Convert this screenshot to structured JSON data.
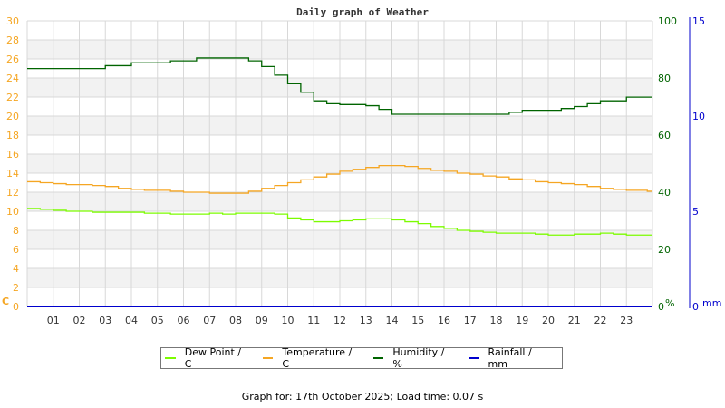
{
  "chart_data": {
    "type": "line",
    "title": "Daily graph of Weather",
    "x": [
      0,
      0.5,
      1,
      1.5,
      2,
      2.5,
      3,
      3.5,
      4,
      4.5,
      5,
      5.5,
      6,
      6.5,
      7,
      7.5,
      8,
      8.5,
      9,
      9.5,
      10,
      10.5,
      11,
      11.5,
      12,
      12.5,
      13,
      13.5,
      14,
      14.5,
      15,
      15.5,
      16,
      16.5,
      17,
      17.5,
      18,
      18.5,
      19,
      19.5,
      20,
      20.5,
      21,
      21.5,
      22,
      22.5,
      23,
      23.8
    ],
    "x_tick_labels": [
      "01",
      "02",
      "03",
      "04",
      "05",
      "06",
      "07",
      "08",
      "09",
      "10",
      "11",
      "12",
      "13",
      "14",
      "15",
      "16",
      "17",
      "18",
      "19",
      "20",
      "21",
      "22",
      "23"
    ],
    "xlim": [
      0,
      24
    ],
    "series": [
      {
        "name": "Dew Point / C",
        "axis": "left",
        "color": "#7cfc00",
        "values": [
          10.3,
          10.2,
          10.1,
          10.0,
          10.0,
          9.9,
          9.9,
          9.9,
          9.9,
          9.8,
          9.8,
          9.7,
          9.7,
          9.7,
          9.8,
          9.7,
          9.8,
          9.8,
          9.8,
          9.7,
          9.3,
          9.1,
          8.9,
          8.9,
          9.0,
          9.1,
          9.2,
          9.2,
          9.1,
          8.9,
          8.7,
          8.4,
          8.2,
          8.0,
          7.9,
          7.8,
          7.7,
          7.7,
          7.7,
          7.6,
          7.5,
          7.5,
          7.6,
          7.6,
          7.7,
          7.6,
          7.5,
          7.5
        ]
      },
      {
        "name": "Temperature / C",
        "axis": "left",
        "color": "#f5a623",
        "values": [
          13.1,
          13.0,
          12.9,
          12.8,
          12.8,
          12.7,
          12.6,
          12.4,
          12.3,
          12.2,
          12.2,
          12.1,
          12.0,
          12.0,
          11.9,
          11.9,
          11.9,
          12.1,
          12.4,
          12.7,
          13.0,
          13.3,
          13.6,
          13.9,
          14.2,
          14.4,
          14.6,
          14.8,
          14.8,
          14.7,
          14.5,
          14.3,
          14.2,
          14.0,
          13.9,
          13.7,
          13.6,
          13.4,
          13.3,
          13.1,
          13.0,
          12.9,
          12.8,
          12.6,
          12.4,
          12.3,
          12.2,
          12.1
        ]
      },
      {
        "name": "Humidity / %",
        "axis": "right",
        "color": "#006400",
        "values": [
          83.3,
          83.3,
          83.3,
          83.3,
          83.3,
          83.3,
          84.3,
          84.3,
          85.3,
          85.3,
          85.3,
          86.0,
          86.0,
          87.0,
          87.0,
          87.0,
          87.0,
          86.0,
          84.0,
          81.0,
          78.0,
          75.0,
          72.0,
          71.0,
          70.7,
          70.7,
          70.3,
          69.0,
          67.3,
          67.3,
          67.3,
          67.3,
          67.3,
          67.3,
          67.3,
          67.3,
          67.3,
          68.0,
          68.7,
          68.7,
          68.7,
          69.3,
          70.0,
          71.0,
          72.0,
          72.0,
          73.3,
          73.3
        ]
      },
      {
        "name": "Rainfall / mm",
        "axis": "rain",
        "color": "#0000cd",
        "values": [
          0,
          0,
          0,
          0,
          0,
          0,
          0,
          0,
          0,
          0,
          0,
          0,
          0,
          0,
          0,
          0,
          0,
          0,
          0,
          0,
          0,
          0,
          0,
          0,
          0,
          0,
          0,
          0,
          0,
          0,
          0,
          0,
          0,
          0,
          0,
          0,
          0,
          0,
          0,
          0,
          0,
          0,
          0,
          0,
          0,
          0,
          0,
          0
        ]
      }
    ],
    "axes": {
      "left": {
        "label": "C",
        "ylim": [
          0,
          30
        ],
        "ticks": [
          "0",
          "2",
          "4",
          "6",
          "8",
          "10",
          "12",
          "14",
          "16",
          "18",
          "20",
          "22",
          "24",
          "26",
          "28",
          "30"
        ],
        "color": "#f5a623"
      },
      "right": {
        "label": "%",
        "ylim": [
          0,
          100
        ],
        "ticks": [
          "0",
          "20",
          "40",
          "60",
          "80",
          "100"
        ],
        "color": "#006400"
      },
      "rain": {
        "label": "mm",
        "ylim": [
          0,
          15
        ],
        "ticks": [
          "0",
          "5",
          "10",
          "15"
        ],
        "color": "#0000cd"
      }
    },
    "grid": true,
    "legend_position": "bottom"
  },
  "legend": [
    {
      "label": "Dew Point / C",
      "color": "#7cfc00"
    },
    {
      "label": "Temperature / C",
      "color": "#f5a623"
    },
    {
      "label": "Humidity / %",
      "color": "#006400"
    },
    {
      "label": "Rainfall / mm",
      "color": "#0000cd"
    }
  ],
  "footer": {
    "text": "Graph for: 17th October 2025; Load time: 0.07 s"
  }
}
